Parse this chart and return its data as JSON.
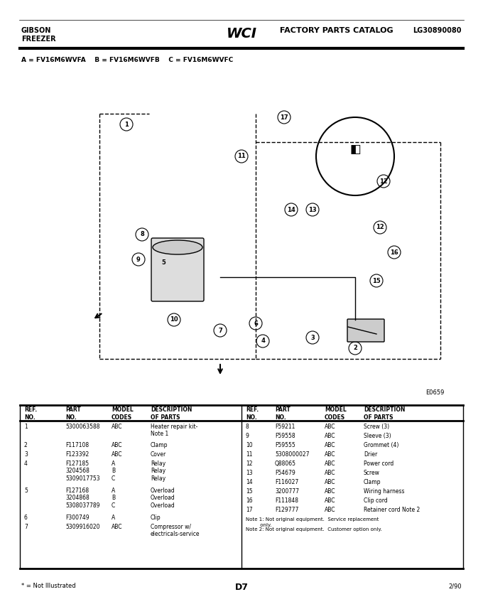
{
  "page_width": 6.8,
  "page_height": 8.64,
  "bg_color": "#ffffff",
  "header": {
    "left_top": "GIBSON",
    "left_bottom": "FREEZER",
    "center": "WCI FACTORY PARTS CATALOG",
    "right": "LG30890080"
  },
  "model_line": "A = FV16M6WVFA    B = FV16M6WVFB    C = FV16M6WVFC",
  "diagram_code": "E0659",
  "table_header_left": [
    "REF.\nNO.",
    "PART\nNO.",
    "MODEL\nCODES",
    "DESCRIPTION\nOF PARTS"
  ],
  "table_header_right": [
    "REF.\nNO.",
    "PART\nNO.",
    "MODEL\nCODES",
    "DESCRIPTION\nOF PARTS"
  ],
  "parts_left": [
    [
      "1",
      "5300063588",
      "ABC",
      "Heater repair kit-\nNote 1"
    ],
    [
      "2",
      "F117108",
      "ABC",
      "Clamp"
    ],
    [
      "3",
      "F123392",
      "ABC",
      "Cover"
    ],
    [
      "4",
      "F127185\n3204568\n5309017753",
      "A\nB\nC",
      "Relay\nRelay\nRelay"
    ],
    [
      "5",
      "F127168\n3204868\n5308037789",
      "A\nB\nC",
      "Overload\nOverload\nOverload"
    ],
    [
      "6",
      "F300749",
      "A",
      "Clip"
    ],
    [
      "7",
      "5309916020",
      "ABC",
      "Compressor w/\nelectricals-service"
    ]
  ],
  "parts_right": [
    [
      "8",
      "F59211",
      "ABC",
      "Screw (3)"
    ],
    [
      "9",
      "F59558",
      "ABC",
      "Sleeve (3)"
    ],
    [
      "10",
      "F59555",
      "ABC",
      "Grommet (4)"
    ],
    [
      "11",
      "5308000027",
      "ABC",
      "Drier"
    ],
    [
      "12",
      "Q88065",
      "ABC",
      "Power cord"
    ],
    [
      "13",
      "F54679",
      "ABC",
      "Screw"
    ],
    [
      "14",
      "F116027",
      "ABC",
      "Clamp"
    ],
    [
      "15",
      "3200777",
      "ABC",
      "Wiring harness"
    ],
    [
      "16",
      "F111848",
      "ABC",
      "Clip cord"
    ],
    [
      "17",
      "F129777",
      "ABC",
      "Retainer cord Note 2"
    ]
  ],
  "notes": [
    "Note 1: Not original equipment.  Service replacement\n         only.",
    "Note 2: Not original equipment.  Customer option only."
  ],
  "footer_left": "* = Not Illustrated",
  "footer_center": "D7",
  "footer_right": "2/90"
}
